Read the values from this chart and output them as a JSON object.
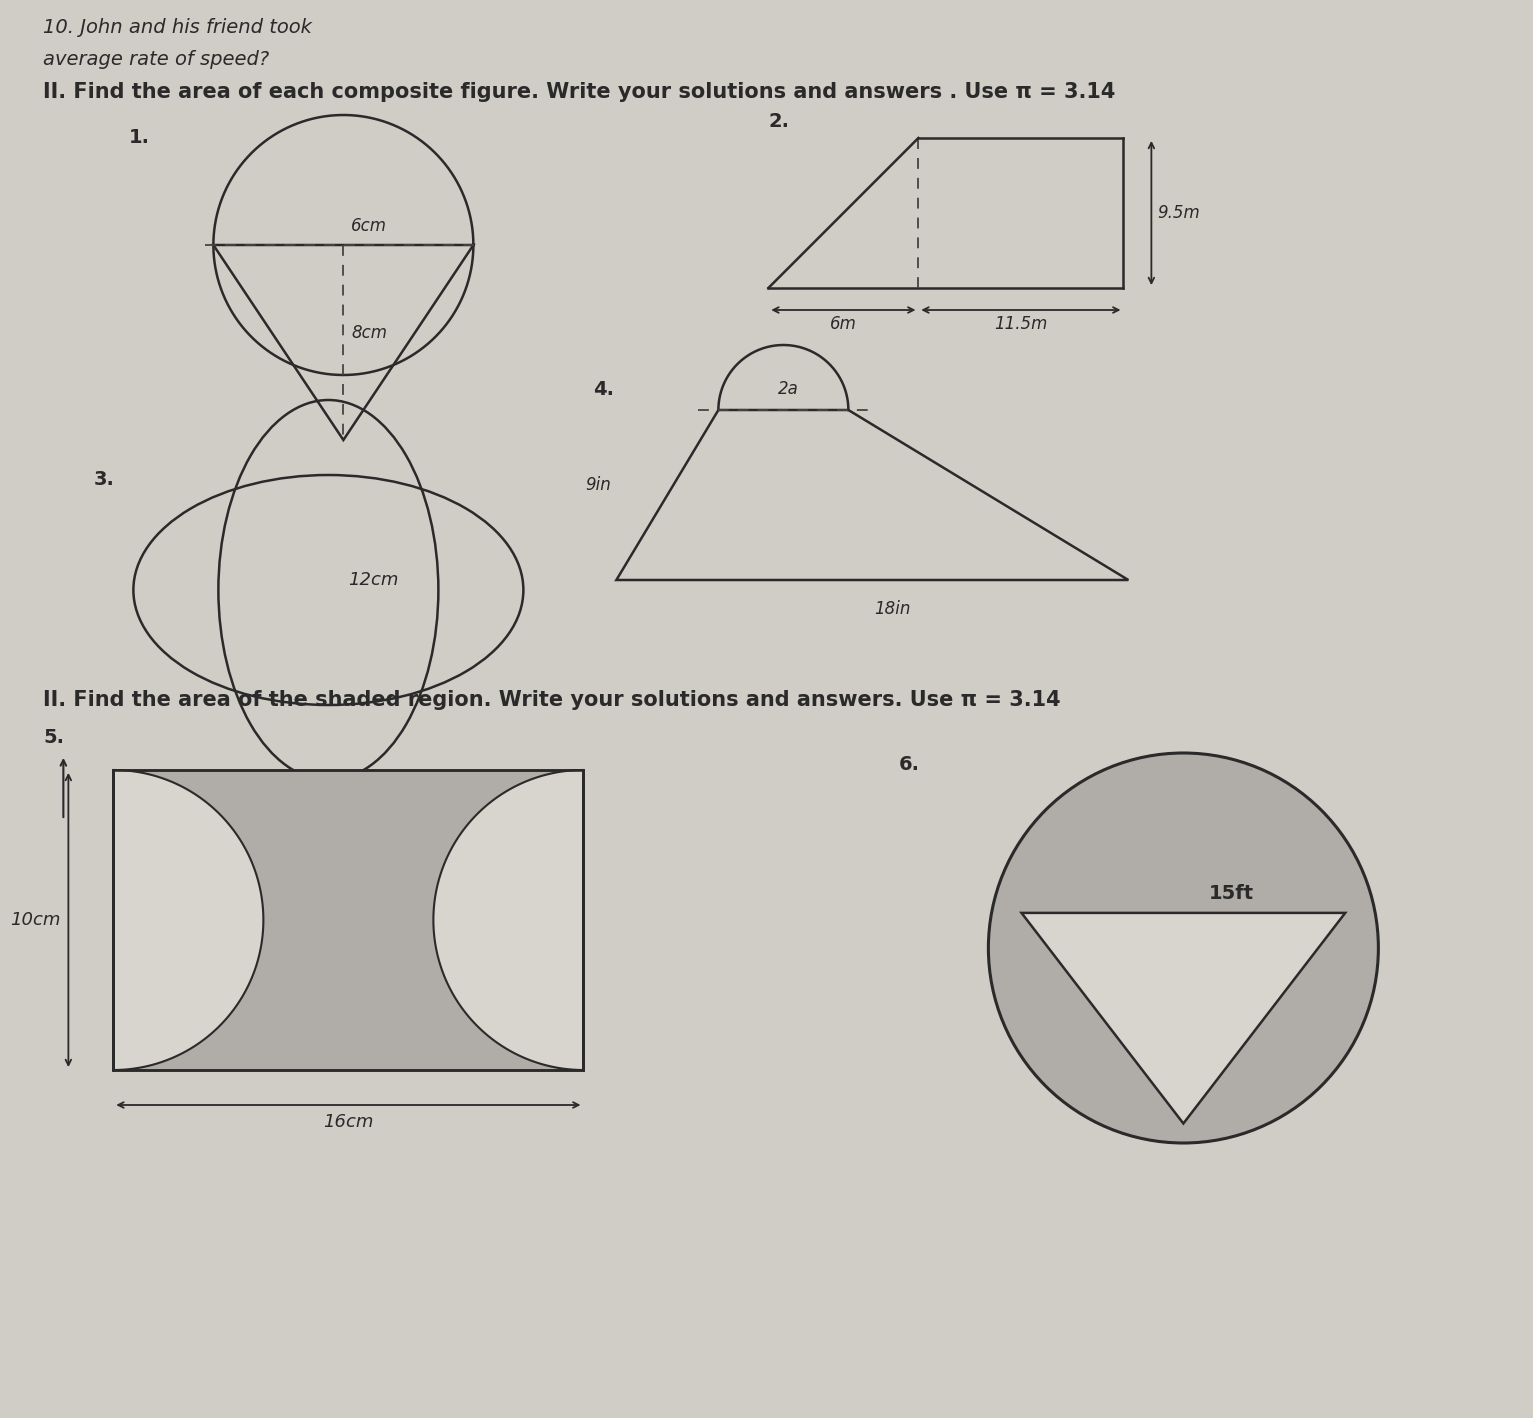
{
  "bg_color": "#d0ccc6",
  "paper_color": "#e0dcd6",
  "title_text": "10. John and his friend took",
  "subtitle_text": "average rate of speed?",
  "section1_text": "II. Find the area of each composite figure. Write your solutions and answers . Use π = 3.14",
  "section2_text": "II. Find the area of the shaded region. Write your solutions and answers. Use π = 3.14",
  "fig1_label": "1.",
  "fig2_label": "2.",
  "fig3_label": "3.",
  "fig4_label": "4.",
  "fig5_label": "5.",
  "fig6_label": "6.",
  "fig1_dim1": "6cm",
  "fig1_dim2": "8cm",
  "fig2_dim1": "9.5m",
  "fig2_dim2": "6m",
  "fig2_dim3": "11.5m",
  "fig3_dim1": "12cm",
  "fig4_dim1": "9in",
  "fig4_dim2": "18in",
  "fig4_dim3": "2a",
  "fig5_dim1": "10cm",
  "fig5_dim2": "16cm",
  "fig6_dim1": "15ft",
  "line_color": "#2a2a2a",
  "fill_color": "#b0aca8",
  "white_color": "#d8d4ce",
  "dashed_color": "#444444"
}
